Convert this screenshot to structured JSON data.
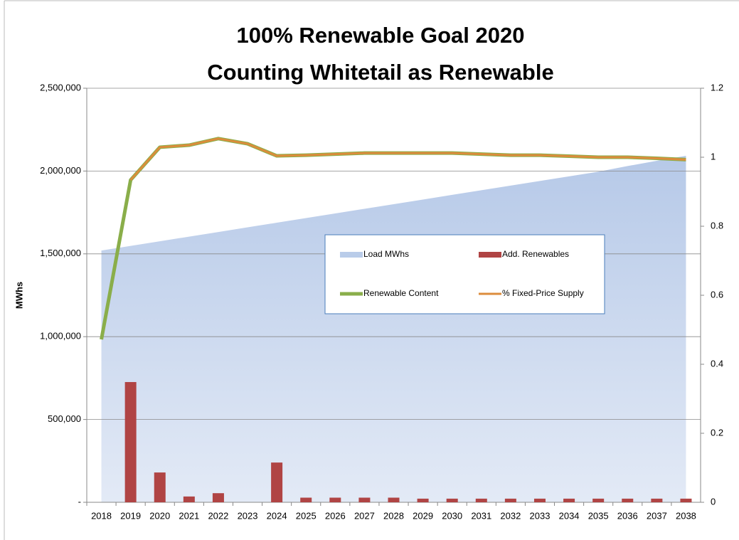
{
  "chart_data": {
    "type": "combo",
    "title": [
      "100% Renewable Goal 2020",
      "Counting Whitetail as Renewable"
    ],
    "y_label": "MWhs",
    "categories": [
      "2018",
      "2019",
      "2020",
      "2021",
      "2022",
      "2023",
      "2024",
      "2025",
      "2026",
      "2027",
      "2028",
      "2029",
      "2030",
      "2031",
      "2032",
      "2033",
      "2034",
      "2035",
      "2036",
      "2037",
      "2038"
    ],
    "ylim": [
      0,
      2500000
    ],
    "yticks": [
      {
        "value": 0,
        "label": "-"
      },
      {
        "value": 500000,
        "label": "500,000"
      },
      {
        "value": 1000000,
        "label": "1,000,000"
      },
      {
        "value": 1500000,
        "label": "1,500,000"
      },
      {
        "value": 2000000,
        "label": "2,000,000"
      },
      {
        "value": 2500000,
        "label": "2,500,000"
      }
    ],
    "y2lim": [
      0,
      1.2
    ],
    "y2ticks": [
      0,
      0.2,
      0.4,
      0.6,
      0.8,
      1,
      1.2
    ],
    "grid": true,
    "series": [
      {
        "name": "Load MWhs",
        "kind": "area",
        "color": "#b9cce9",
        "values": [
          1520000,
          1548000,
          1576000,
          1604000,
          1632000,
          1660000,
          1688000,
          1716000,
          1744000,
          1772000,
          1800000,
          1828000,
          1856000,
          1884000,
          1912000,
          1940000,
          1968000,
          1996000,
          2030000,
          2062000,
          2092000
        ]
      },
      {
        "name": "Add. Renewables",
        "kind": "bar",
        "color": "#b04444",
        "values": [
          0,
          726000,
          180000,
          35000,
          55000,
          0,
          240000,
          28000,
          28000,
          28000,
          28000,
          22000,
          22000,
          22000,
          22000,
          22000,
          22000,
          22000,
          22000,
          22000,
          22000
        ]
      },
      {
        "name": "Renewable Content",
        "kind": "line",
        "axis": "y2",
        "width": 5,
        "color": "#8aae4a",
        "values": [
          0.472,
          0.934,
          1.029,
          1.035,
          1.054,
          1.039,
          1.004,
          1.006,
          1.009,
          1.012,
          1.012,
          1.012,
          1.012,
          1.009,
          1.006,
          1.006,
          1.003,
          1.0,
          1.0,
          0.997,
          0.993
        ]
      },
      {
        "name": "% Fixed-Price Supply",
        "kind": "line",
        "axis": "y2",
        "width": 3,
        "color": "#dc8c3c",
        "values": [
          null,
          0.934,
          1.029,
          1.035,
          1.054,
          1.039,
          1.004,
          1.006,
          1.009,
          1.012,
          1.012,
          1.012,
          1.012,
          1.009,
          1.006,
          1.006,
          1.003,
          1.0,
          1.0,
          0.997,
          0.993
        ]
      }
    ]
  }
}
